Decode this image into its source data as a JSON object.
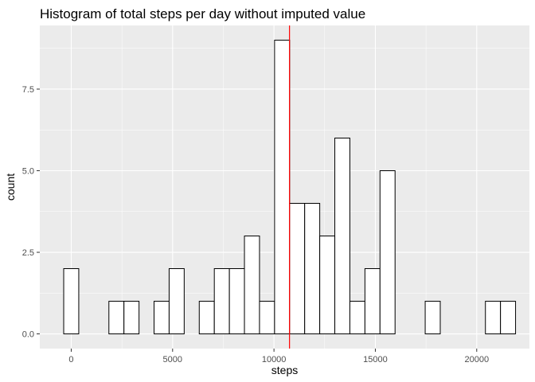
{
  "chart_data": {
    "type": "bar",
    "title": "Histogram of total steps per day without imputed value",
    "xlabel": "steps",
    "ylabel": "count",
    "bin_width": 742.9,
    "bins": [
      {
        "center": 0,
        "count": 2
      },
      {
        "center": 743,
        "count": 0
      },
      {
        "center": 1486,
        "count": 0
      },
      {
        "center": 2229,
        "count": 1
      },
      {
        "center": 2972,
        "count": 1
      },
      {
        "center": 3714,
        "count": 0
      },
      {
        "center": 4457,
        "count": 1
      },
      {
        "center": 5200,
        "count": 2
      },
      {
        "center": 5943,
        "count": 0
      },
      {
        "center": 6686,
        "count": 1
      },
      {
        "center": 7429,
        "count": 2
      },
      {
        "center": 8172,
        "count": 2
      },
      {
        "center": 8915,
        "count": 3
      },
      {
        "center": 9658,
        "count": 1
      },
      {
        "center": 10401,
        "count": 9
      },
      {
        "center": 11143,
        "count": 4
      },
      {
        "center": 11886,
        "count": 4
      },
      {
        "center": 12629,
        "count": 3
      },
      {
        "center": 13372,
        "count": 6
      },
      {
        "center": 14115,
        "count": 1
      },
      {
        "center": 14858,
        "count": 2
      },
      {
        "center": 15601,
        "count": 5
      },
      {
        "center": 16344,
        "count": 0
      },
      {
        "center": 17087,
        "count": 0
      },
      {
        "center": 17830,
        "count": 1
      },
      {
        "center": 18572,
        "count": 0
      },
      {
        "center": 19315,
        "count": 0
      },
      {
        "center": 20058,
        "count": 0
      },
      {
        "center": 20801,
        "count": 1
      },
      {
        "center": 21544,
        "count": 1
      }
    ],
    "mean_line": {
      "value": 10766,
      "color": "#ff0000"
    },
    "xlim": [
      -1550,
      22600
    ],
    "ylim": [
      -0.45,
      9.45
    ],
    "x_ticks": [
      0,
      5000,
      10000,
      15000,
      20000
    ],
    "x_tick_labels": [
      "0",
      "5000",
      "10000",
      "15000",
      "20000"
    ],
    "y_ticks": [
      0,
      2.5,
      5,
      7.5
    ],
    "y_tick_labels": [
      "0.0",
      "2.5",
      "5.0",
      "7.5"
    ],
    "grid": true,
    "panel_background": "#ebebeb"
  }
}
